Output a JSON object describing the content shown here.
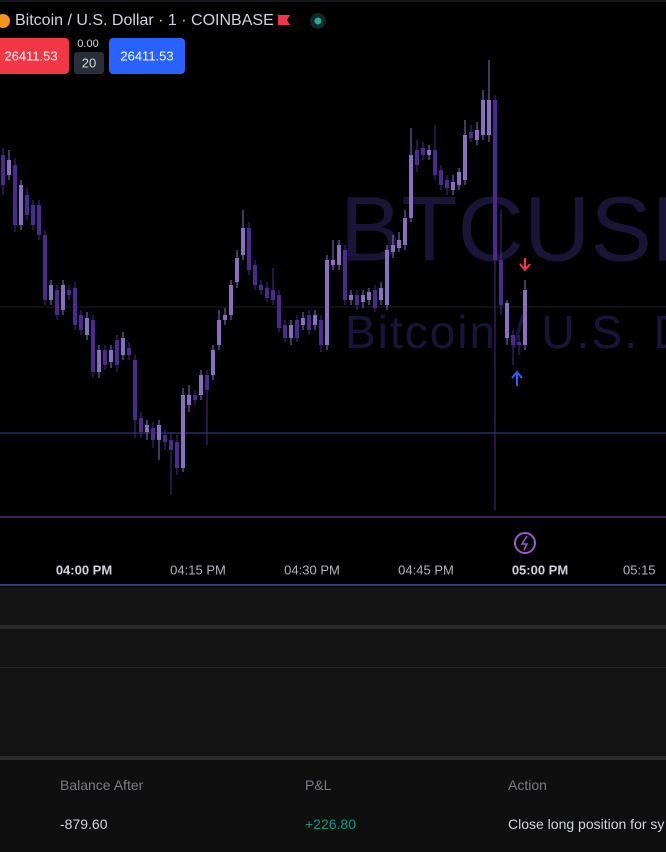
{
  "header": {
    "symbol_title": "Bitcoin / U.S. Dollar · 1 · COINBASE",
    "sell_price": "26411.53",
    "spread": "0.00",
    "quantity": "20",
    "buy_price": "26411.53"
  },
  "chart_data": {
    "type": "candlestick",
    "watermark_symbol": "BTCUSD",
    "watermark_name": "Bitcoin / U.S. Dollar",
    "x_labels": [
      "04:00 PM",
      "04:15 PM",
      "04:30 PM",
      "04:45 PM",
      "05:00 PM",
      "05:15"
    ],
    "ylim": [
      83,
      600
    ],
    "up_color": "#8a6fc0",
    "down_color": "#4a2a8e",
    "candles": [
      [
        445,
        452,
        405,
        415
      ],
      [
        425,
        450,
        420,
        440
      ],
      [
        435,
        442,
        368,
        375
      ],
      [
        375,
        420,
        370,
        415
      ],
      [
        405,
        412,
        380,
        385
      ],
      [
        395,
        400,
        370,
        375
      ],
      [
        395,
        400,
        360,
        365
      ],
      [
        365,
        370,
        295,
        300
      ],
      [
        300,
        320,
        295,
        315
      ],
      [
        310,
        315,
        280,
        285
      ],
      [
        290,
        320,
        285,
        315
      ],
      [
        310,
        315,
        300,
        305
      ],
      [
        312,
        318,
        270,
        275
      ],
      [
        285,
        290,
        265,
        270
      ],
      [
        265,
        288,
        260,
        282
      ],
      [
        280,
        285,
        222,
        228
      ],
      [
        228,
        255,
        222,
        250
      ],
      [
        250,
        255,
        230,
        235
      ],
      [
        238,
        255,
        232,
        250
      ],
      [
        260,
        265,
        228,
        235
      ],
      [
        245,
        268,
        240,
        262
      ],
      [
        252,
        258,
        240,
        245
      ],
      [
        240,
        245,
        162,
        180
      ],
      [
        182,
        188,
        162,
        168
      ],
      [
        168,
        180,
        160,
        175
      ],
      [
        172,
        178,
        152,
        160
      ],
      [
        160,
        180,
        140,
        175
      ],
      [
        165,
        170,
        150,
        158
      ],
      [
        160,
        168,
        105,
        150
      ],
      [
        158,
        165,
        125,
        132
      ],
      [
        132,
        212,
        128,
        205
      ],
      [
        195,
        215,
        188,
        205
      ],
      [
        205,
        210,
        195,
        200
      ],
      [
        205,
        230,
        200,
        225
      ],
      [
        225,
        230,
        155,
        210
      ],
      [
        225,
        255,
        220,
        250
      ],
      [
        255,
        290,
        250,
        280
      ],
      [
        280,
        292,
        275,
        285
      ],
      [
        285,
        320,
        280,
        315
      ],
      [
        318,
        350,
        312,
        342
      ],
      [
        345,
        390,
        340,
        372
      ],
      [
        372,
        378,
        325,
        330
      ],
      [
        335,
        340,
        310,
        315
      ],
      [
        315,
        320,
        305,
        310
      ],
      [
        312,
        318,
        298,
        302
      ],
      [
        310,
        332,
        295,
        300
      ],
      [
        305,
        310,
        268,
        272
      ],
      [
        275,
        280,
        258,
        262
      ],
      [
        262,
        280,
        255,
        275
      ],
      [
        280,
        285,
        258,
        262
      ],
      [
        275,
        288,
        270,
        282
      ],
      [
        285,
        290,
        265,
        270
      ],
      [
        275,
        290,
        270,
        285
      ],
      [
        280,
        285,
        248,
        255
      ],
      [
        255,
        345,
        250,
        340
      ],
      [
        335,
        360,
        330,
        340
      ],
      [
        335,
        360,
        330,
        355
      ],
      [
        350,
        355,
        295,
        300
      ],
      [
        300,
        310,
        295,
        305
      ],
      [
        305,
        310,
        290,
        295
      ],
      [
        298,
        310,
        292,
        305
      ],
      [
        300,
        312,
        295,
        308
      ],
      [
        310,
        315,
        288,
        292
      ],
      [
        300,
        318,
        295,
        312
      ],
      [
        295,
        355,
        290,
        350
      ],
      [
        348,
        365,
        342,
        355
      ],
      [
        352,
        368,
        348,
        360
      ],
      [
        355,
        390,
        350,
        382
      ],
      [
        382,
        472,
        378,
        445
      ],
      [
        450,
        460,
        428,
        435
      ],
      [
        452,
        458,
        440,
        445
      ],
      [
        445,
        455,
        440,
        450
      ],
      [
        450,
        475,
        420,
        425
      ],
      [
        430,
        435,
        410,
        415
      ],
      [
        420,
        425,
        405,
        412
      ],
      [
        410,
        425,
        405,
        418
      ],
      [
        415,
        432,
        410,
        428
      ],
      [
        420,
        480,
        415,
        465
      ],
      [
        468,
        475,
        458,
        462
      ],
      [
        460,
        478,
        455,
        470
      ],
      [
        465,
        510,
        460,
        500
      ],
      [
        465,
        540,
        458,
        500
      ],
      [
        500,
        505,
        90,
        340
      ],
      [
        340,
        390,
        285,
        295
      ],
      [
        262,
        300,
        255,
        297
      ],
      [
        265,
        270,
        235,
        255
      ],
      [
        258,
        265,
        245,
        255
      ],
      [
        255,
        320,
        250,
        310
      ]
    ]
  },
  "table": {
    "headers": [
      "Balance After",
      "P&L",
      "Action"
    ],
    "rows": [
      [
        "-879.60",
        "+226.80",
        "Close long position for sy"
      ]
    ]
  }
}
